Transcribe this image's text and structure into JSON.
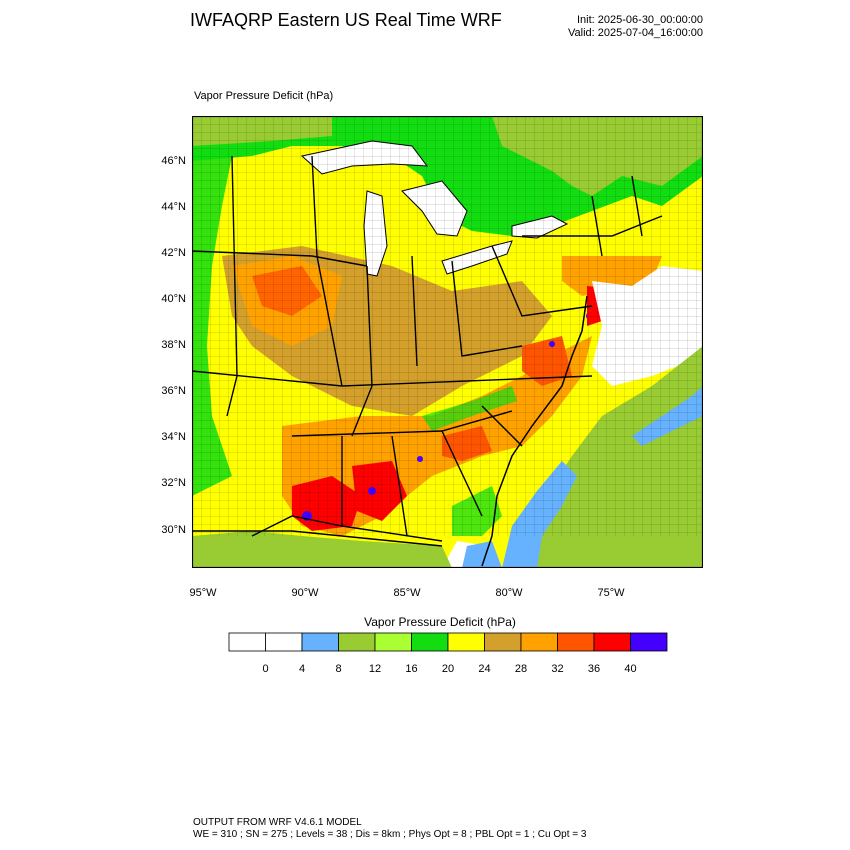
{
  "header": {
    "title": "IWFAQRP Eastern US Real Time WRF",
    "init": "Init: 2025-06-30_00:00:00",
    "valid": "Valid: 2025-07-04_16:00:00"
  },
  "map": {
    "field_label": "Vapor Pressure Deficit   (hPa)",
    "lat_labels": [
      "46°N",
      "44°N",
      "42°N",
      "40°N",
      "38°N",
      "36°N",
      "34°N",
      "32°N",
      "30°N"
    ],
    "lon_labels": [
      "95°W",
      "90°W",
      "85°W",
      "80°W",
      "75°W"
    ],
    "colors": {
      "water": "#ffffff",
      "lake": "#ffffff",
      "ocean_band_blue": "#66b2ff",
      "ocean_band_green": "#99cc33",
      "border": "#000000"
    }
  },
  "legend": {
    "title": "Vapor Pressure Deficit  (hPa)",
    "colors": [
      "#ffffff",
      "#ffffff",
      "#66b2ff",
      "#99cc33",
      "#aaff33",
      "#11dd11",
      "#ffff00",
      "#d4a02c",
      "#ffa200",
      "#ff5500",
      "#ff0000",
      "#4400ff"
    ],
    "labels": [
      "0",
      "4",
      "8",
      "12",
      "16",
      "20",
      "24",
      "28",
      "32",
      "36",
      "40"
    ]
  },
  "footer": {
    "line1": "OUTPUT FROM WRF V4.6.1 MODEL",
    "line2": "WE = 310 ; SN = 275 ; Levels = 38 ; Dis = 8km ; Phys Opt = 8 ; PBL Opt = 1 ; Cu Opt = 3"
  }
}
